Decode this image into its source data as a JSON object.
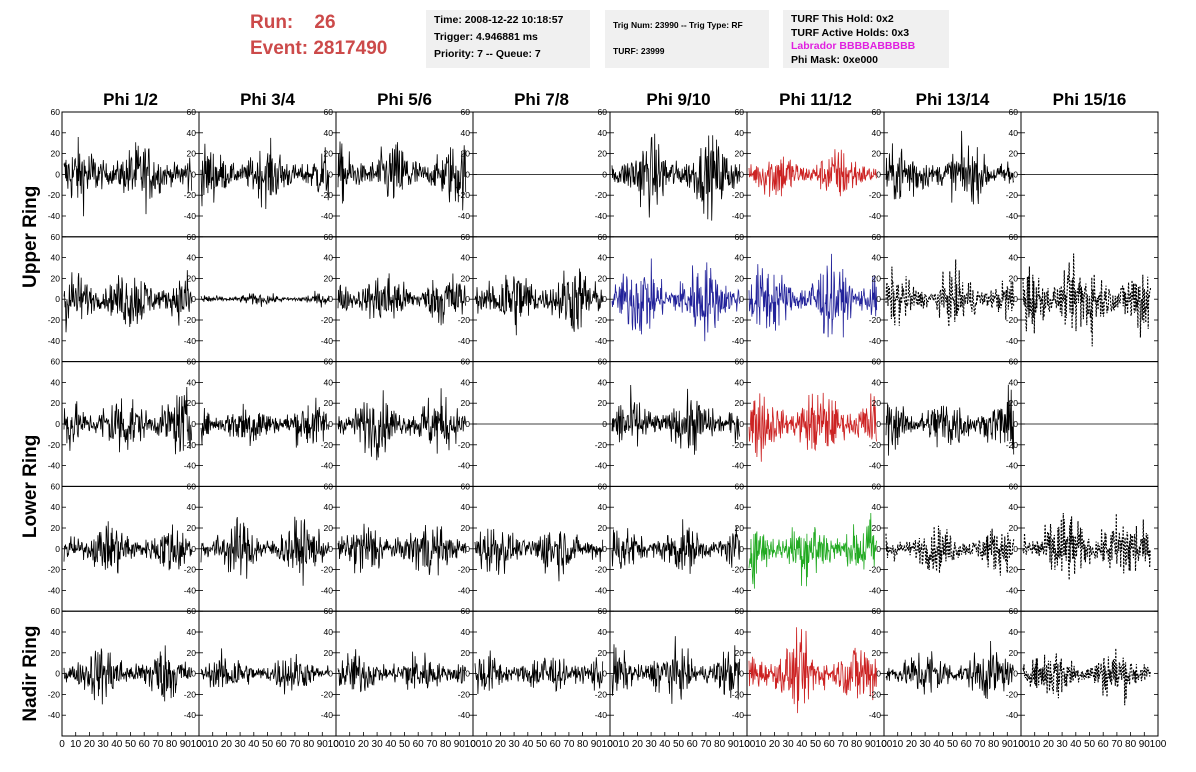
{
  "header": {
    "run_label": "Run:",
    "run_value": "26",
    "event_label": "Event:",
    "event_value": "2817490",
    "time_line": "Time: 2008-12-22 10:18:57",
    "trigger_line": "Trigger: 4.946881 ms",
    "priority_line": "Priority: 7 -- Queue: 7",
    "trig_line": "Trig Num: 23990 -- Trig Type: RF",
    "turf_line": "TURF: 23999",
    "hold_line": "TURF This Hold: 0x2",
    "active_line": "TURF Active Holds: 0x3",
    "labrador_line": "Labrador BBBBABBBBB",
    "phimask_line": "Phi Mask: 0xe000"
  },
  "chart_data": {
    "type": "line",
    "columns": [
      "Phi 1/2",
      "Phi 3/4",
      "Phi 5/6",
      "Phi 7/8",
      "Phi 9/10",
      "Phi 11/12",
      "Phi 13/14",
      "Phi 15/16"
    ],
    "row_groups": [
      {
        "label": "Upper Ring",
        "rows": [
          0,
          1
        ]
      },
      {
        "label": "Lower Ring",
        "rows": [
          2,
          3
        ]
      },
      {
        "label": "Nadir Ring",
        "rows": [
          4
        ]
      }
    ],
    "ylim": [
      -60,
      60
    ],
    "yticks": [
      -40,
      -20,
      0,
      20,
      40,
      60
    ],
    "xlim": [
      0,
      100
    ],
    "xticks": [
      0,
      10,
      20,
      30,
      40,
      50,
      60,
      70,
      80,
      90,
      100
    ],
    "colors": {
      "black": "#000000",
      "red": "#cc2222",
      "blue": "#22229a",
      "green": "#22aa22"
    },
    "traces": [
      [
        {
          "color": "black",
          "amp": 16
        },
        {
          "color": "black",
          "amp": 14
        },
        {
          "color": "black",
          "amp": 16
        },
        {
          "color": "black",
          "amp": 0
        },
        {
          "color": "black",
          "amp": 18
        },
        {
          "color": "red",
          "amp": 13
        },
        {
          "color": "black",
          "amp": 15
        },
        {
          "color": "black",
          "amp": 0
        }
      ],
      [
        {
          "color": "black",
          "amp": 15
        },
        {
          "color": "black",
          "amp": 3
        },
        {
          "color": "black",
          "amp": 14
        },
        {
          "color": "black",
          "amp": 17
        },
        {
          "color": "blue",
          "amp": 19
        },
        {
          "color": "blue",
          "amp": 18
        },
        {
          "color": "black",
          "amp": 13,
          "dashed": true
        },
        {
          "color": "black",
          "amp": 20,
          "dashed": true
        }
      ],
      [
        {
          "color": "black",
          "amp": 16
        },
        {
          "color": "black",
          "amp": 12
        },
        {
          "color": "black",
          "amp": 15
        },
        {
          "color": "black",
          "amp": 0
        },
        {
          "color": "black",
          "amp": 14
        },
        {
          "color": "red",
          "amp": 17
        },
        {
          "color": "black",
          "amp": 14
        },
        {
          "color": "black",
          "amp": 0
        }
      ],
      [
        {
          "color": "black",
          "amp": 13
        },
        {
          "color": "black",
          "amp": 14
        },
        {
          "color": "black",
          "amp": 14
        },
        {
          "color": "black",
          "amp": 13
        },
        {
          "color": "black",
          "amp": 12
        },
        {
          "color": "green",
          "amp": 17
        },
        {
          "color": "black",
          "amp": 11,
          "dashed": true
        },
        {
          "color": "black",
          "amp": 18,
          "dashed": true
        }
      ],
      [
        {
          "color": "black",
          "amp": 14
        },
        {
          "color": "black",
          "amp": 10
        },
        {
          "color": "black",
          "amp": 11
        },
        {
          "color": "black",
          "amp": 11
        },
        {
          "color": "black",
          "amp": 13
        },
        {
          "color": "red",
          "amp": 17
        },
        {
          "color": "black",
          "amp": 13
        },
        {
          "color": "black",
          "amp": 13,
          "dashed": true
        }
      ]
    ]
  }
}
